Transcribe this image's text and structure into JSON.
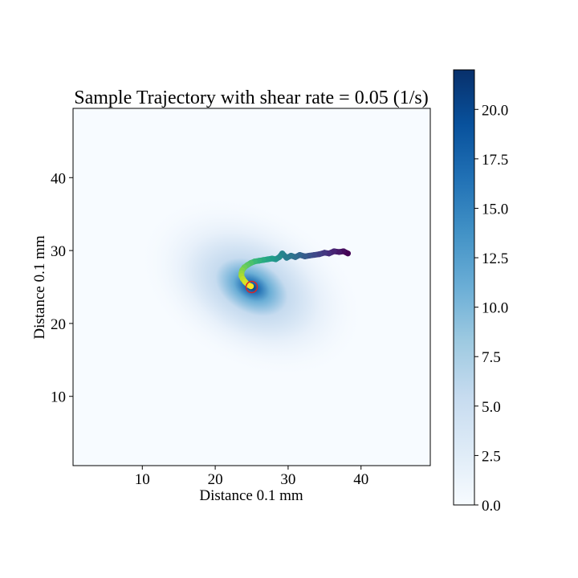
{
  "chart_data": {
    "type": "heatmap",
    "title": "Sample Trajectory with shear rate = 0.05 (1/s)",
    "xlabel": "Distance 0.1 mm",
    "ylabel": "Distance 0.1 mm",
    "xlim": [
      0.5,
      49.5
    ],
    "ylim": [
      0.5,
      49.5
    ],
    "x_ticks": [
      10,
      20,
      30,
      40
    ],
    "y_ticks": [
      10,
      20,
      30,
      40
    ],
    "heatmap": {
      "colormap": "Blues",
      "peak_value": 22.0,
      "peak_center": [
        25,
        25
      ]
    },
    "colorbar": {
      "vmin": 0.0,
      "vmax": 22.0,
      "ticks": [
        0.0,
        2.5,
        5.0,
        7.5,
        10.0,
        12.5,
        15.0,
        17.5,
        20.0
      ],
      "tick_labels": [
        "0.0",
        "2.5",
        "5.0",
        "7.5",
        "10.0",
        "12.5",
        "15.0",
        "17.5",
        "20.0"
      ]
    },
    "trajectory": {
      "colormap": "viridis",
      "points": [
        [
          38.2,
          29.6
        ],
        [
          37.6,
          29.9
        ],
        [
          37.0,
          29.8
        ],
        [
          36.3,
          29.9
        ],
        [
          35.6,
          29.6
        ],
        [
          35.0,
          29.7
        ],
        [
          34.3,
          29.5
        ],
        [
          33.6,
          29.4
        ],
        [
          32.9,
          29.3
        ],
        [
          32.3,
          29.2
        ],
        [
          31.6,
          29.4
        ],
        [
          31.0,
          29.1
        ],
        [
          30.4,
          29.3
        ],
        [
          29.8,
          29.0
        ],
        [
          29.2,
          29.6
        ],
        [
          28.8,
          29.1
        ],
        [
          28.3,
          28.8
        ],
        [
          27.8,
          28.9
        ],
        [
          27.2,
          28.8
        ],
        [
          26.6,
          28.7
        ],
        [
          26.0,
          28.6
        ],
        [
          25.4,
          28.5
        ],
        [
          24.9,
          28.3
        ],
        [
          24.4,
          28.0
        ],
        [
          24.0,
          27.7
        ],
        [
          23.7,
          27.3
        ],
        [
          23.6,
          26.9
        ],
        [
          23.6,
          26.5
        ],
        [
          23.8,
          26.1
        ],
        [
          24.1,
          25.7
        ],
        [
          24.5,
          25.3
        ],
        [
          24.9,
          25.1
        ]
      ],
      "start_marker": {
        "x": 25.0,
        "y": 25.0,
        "color": "#d62728"
      }
    }
  }
}
